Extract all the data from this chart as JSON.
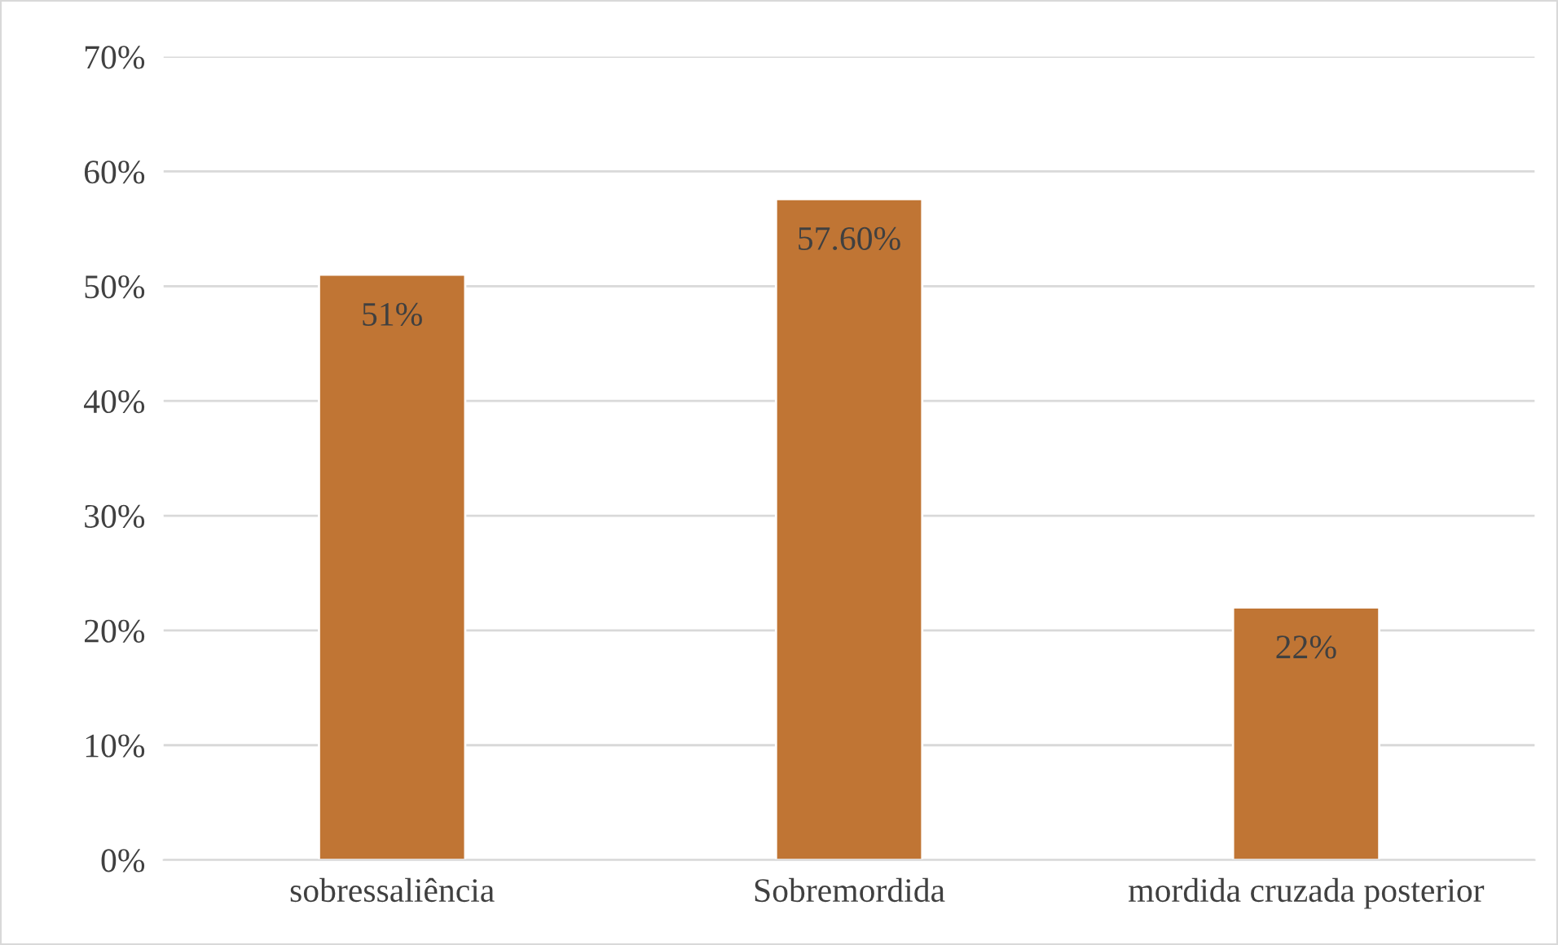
{
  "chart_data": {
    "type": "bar",
    "categories": [
      "sobressaliência",
      "Sobremordida",
      "mordida cruzada posterior"
    ],
    "values": [
      51,
      57.6,
      22
    ],
    "value_labels": [
      "51%",
      "57.60%",
      "22%"
    ],
    "color": "#c07534",
    "ylim": [
      0,
      70
    ],
    "yticks": [
      {
        "value": 0,
        "label": "0%"
      },
      {
        "value": 10,
        "label": "10%"
      },
      {
        "value": 20,
        "label": "20%"
      },
      {
        "value": 30,
        "label": "30%"
      },
      {
        "value": 40,
        "label": "40%"
      },
      {
        "value": 50,
        "label": "50%"
      },
      {
        "value": 60,
        "label": "60%"
      },
      {
        "value": 70,
        "label": "70%"
      }
    ],
    "grid": "y"
  }
}
